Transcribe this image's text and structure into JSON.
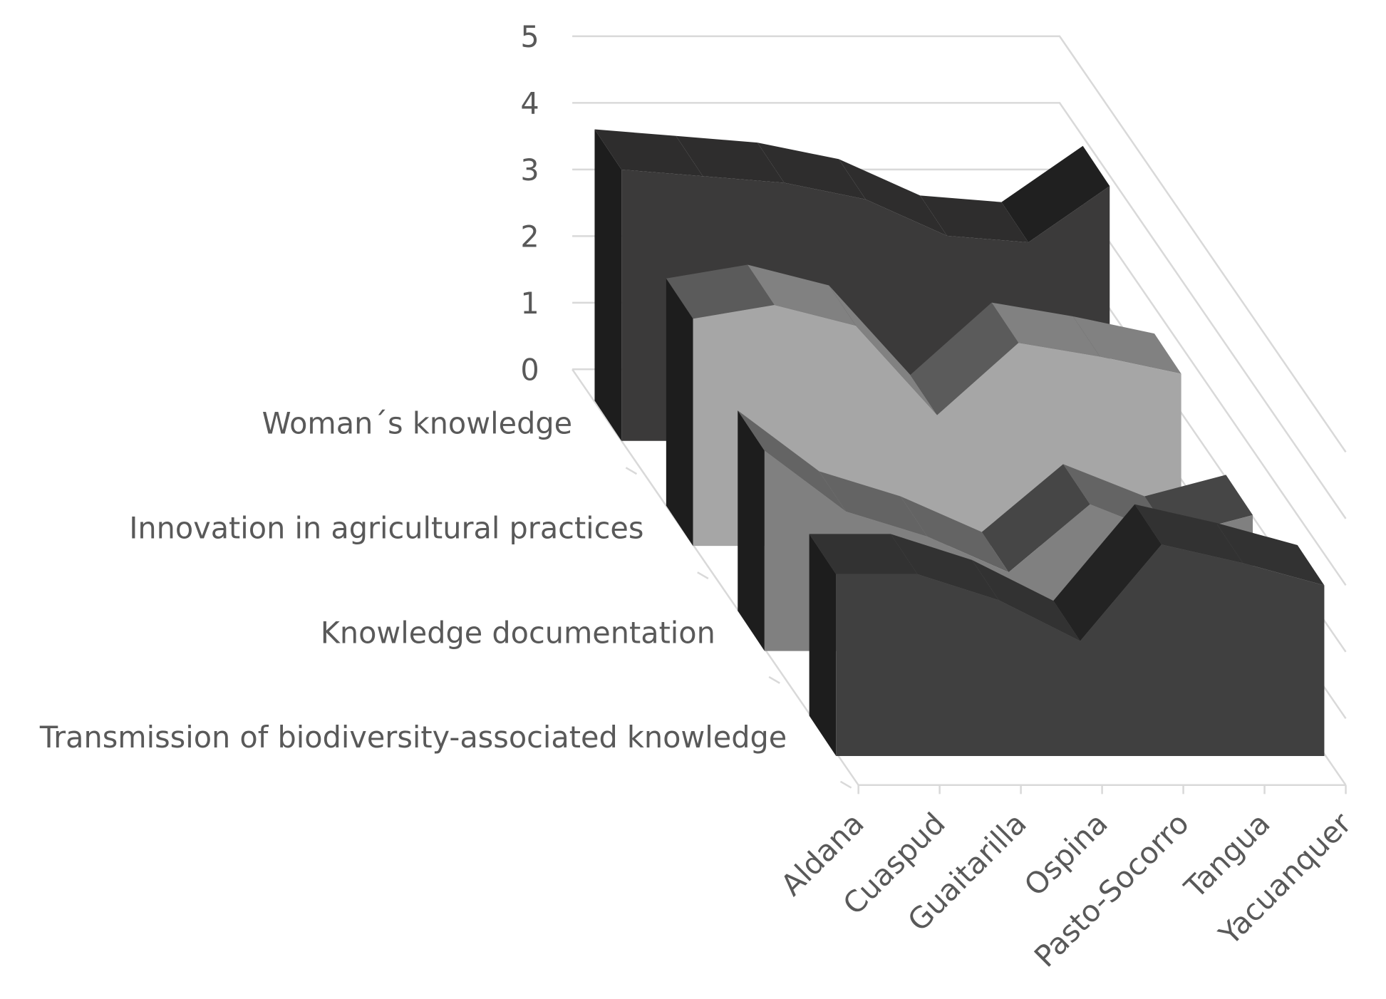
{
  "chart_data": {
    "type": "area",
    "categories": [
      "Aldana",
      "Cuaspud",
      "Guaitarilla",
      "Ospina",
      "Pasto-Socorro",
      "Tangua",
      "Yacuanquer"
    ],
    "series": [
      {
        "name": "Woman´s knowledge",
        "color": "#3b3a3a",
        "values": [
          4.1,
          4.0,
          3.9,
          3.65,
          3.1,
          3.0,
          3.85
        ]
      },
      {
        "name": "Innovation in agricultural practices",
        "color": "#a6a6a6",
        "values": [
          3.3,
          3.5,
          3.2,
          1.9,
          2.95,
          2.75,
          2.5
        ]
      },
      {
        "name": "Knowledge documentation",
        "color": "#808080",
        "values": [
          2.8,
          1.95,
          1.6,
          1.1,
          2.05,
          1.6,
          1.9
        ]
      },
      {
        "name": "Transmission of biodiversity-associated knowledge",
        "color": "#404040",
        "values": [
          2.45,
          2.45,
          2.1,
          1.55,
          2.85,
          2.6,
          2.3
        ]
      }
    ],
    "ylim": [
      0,
      5
    ],
    "yticks": [
      0,
      1,
      2,
      3,
      4,
      5
    ],
    "grid": true
  }
}
